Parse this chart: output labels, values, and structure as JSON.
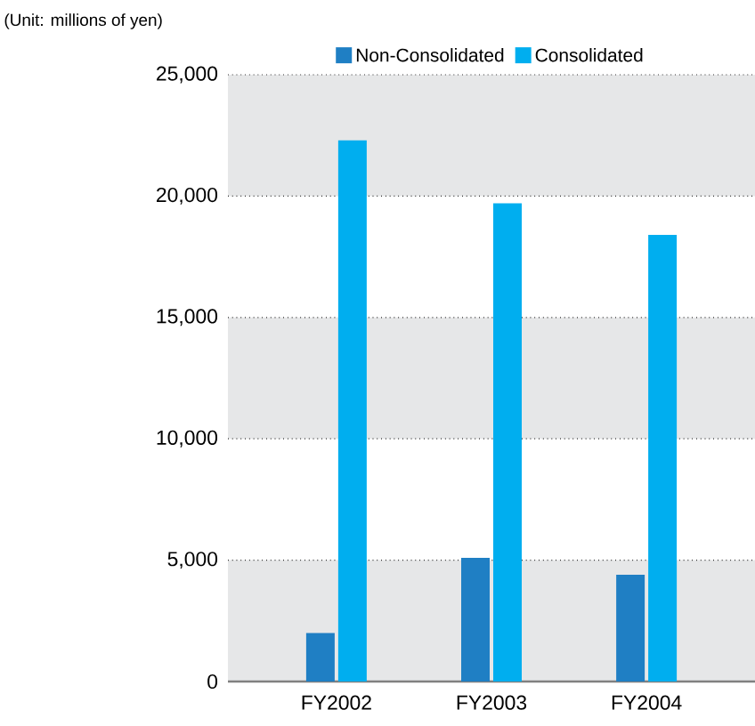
{
  "chart_data": {
    "type": "bar",
    "ylabel": "(Unit: millions of yen)",
    "categories": [
      "FY2002",
      "FY2003",
      "FY2004"
    ],
    "series": [
      {
        "name": "Non-Consolidated",
        "color": "#1f7fc4",
        "values": [
          2000,
          5100,
          4400
        ]
      },
      {
        "name": "Consolidated",
        "color": "#00aeef",
        "values": [
          22300,
          19700,
          18400
        ]
      }
    ],
    "ylim": [
      0,
      25000
    ],
    "yticks": [
      {
        "value": 0,
        "label": "0"
      },
      {
        "value": 5000,
        "label": "5,000"
      },
      {
        "value": 10000,
        "label": "10,000"
      },
      {
        "value": 15000,
        "label": "15,000"
      },
      {
        "value": 20000,
        "label": "20,000"
      },
      {
        "value": 25000,
        "label": "25,000"
      }
    ],
    "bands": [
      {
        "axis": "y",
        "from": 0,
        "to": 5000,
        "color": "#e6e7e8"
      },
      {
        "axis": "y",
        "from": 10000,
        "to": 15000,
        "color": "#e6e7e8"
      },
      {
        "axis": "y",
        "from": 20000,
        "to": 25000,
        "color": "#e6e7e8"
      }
    ],
    "grid": "y",
    "legend": "top"
  }
}
